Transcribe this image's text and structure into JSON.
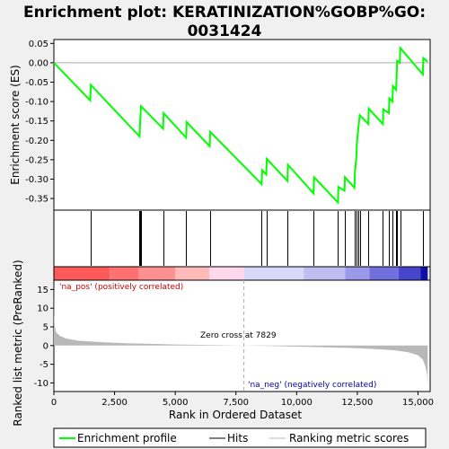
{
  "title_line1": "Enrichment plot: KERATINIZATION%GOBP%GO:",
  "title_line2": "0031424",
  "colors": {
    "background": "#f0f0f0",
    "plot_bg": "#ffffff",
    "es_line": "#00ff00",
    "hit_line": "#000000",
    "metric_fill": "#b8b8b8",
    "zero_line": "#aaaaaa",
    "pos_label": "#cc0000",
    "neg_label": "#0000aa"
  },
  "chart_data": [
    {
      "type": "line",
      "name": "enrichment-profile",
      "ylabel": "Enrichment score (ES)",
      "xlim": [
        0,
        15500
      ],
      "ylim": [
        -0.38,
        0.06
      ],
      "y_ticks": [
        0.05,
        0.0,
        -0.05,
        -0.1,
        -0.15,
        -0.2,
        -0.25,
        -0.3,
        -0.35
      ],
      "y_tick_labels": [
        "0.05",
        "0.00",
        "-0.05",
        "-0.10",
        "-0.15",
        "-0.20",
        "-0.25",
        "-0.30",
        "-0.35"
      ],
      "points": [
        [
          0,
          0.0
        ],
        [
          1500,
          -0.097
        ],
        [
          1520,
          -0.057
        ],
        [
          3530,
          -0.19
        ],
        [
          3550,
          -0.155
        ],
        [
          3590,
          -0.112
        ],
        [
          4500,
          -0.17
        ],
        [
          4520,
          -0.13
        ],
        [
          5450,
          -0.193
        ],
        [
          5470,
          -0.153
        ],
        [
          6420,
          -0.215
        ],
        [
          6440,
          -0.178
        ],
        [
          8560,
          -0.313
        ],
        [
          8580,
          -0.277
        ],
        [
          8750,
          -0.288
        ],
        [
          8770,
          -0.248
        ],
        [
          9620,
          -0.305
        ],
        [
          9640,
          -0.263
        ],
        [
          10700,
          -0.337
        ],
        [
          10720,
          -0.295
        ],
        [
          11700,
          -0.36
        ],
        [
          11720,
          -0.32
        ],
        [
          11970,
          -0.33
        ],
        [
          11990,
          -0.295
        ],
        [
          12380,
          -0.322
        ],
        [
          12400,
          -0.283
        ],
        [
          12460,
          -0.245
        ],
        [
          12480,
          -0.208
        ],
        [
          12540,
          -0.17
        ],
        [
          12600,
          -0.135
        ],
        [
          12950,
          -0.158
        ],
        [
          12970,
          -0.118
        ],
        [
          13550,
          -0.158
        ],
        [
          13570,
          -0.12
        ],
        [
          13800,
          -0.13
        ],
        [
          13820,
          -0.092
        ],
        [
          13950,
          -0.1
        ],
        [
          13970,
          -0.06
        ],
        [
          14100,
          -0.07
        ],
        [
          14120,
          -0.032
        ],
        [
          14140,
          0.005
        ],
        [
          14250,
          0.0
        ],
        [
          14270,
          0.038
        ],
        [
          15200,
          -0.03
        ],
        [
          15220,
          0.012
        ],
        [
          15400,
          0.003
        ]
      ]
    },
    {
      "type": "hits",
      "name": "hits",
      "positions": [
        1500,
        3530,
        3550,
        3590,
        4500,
        5450,
        6420,
        8560,
        8750,
        9620,
        10700,
        11700,
        11970,
        12380,
        12460,
        12540,
        12600,
        12950,
        13550,
        13800,
        13950,
        14100,
        14140,
        14270,
        15200
      ]
    },
    {
      "type": "area",
      "name": "ranked-list-metric",
      "ylabel": "Ranked list metric (PreRanked)",
      "xlabel": "Rank in Ordered Dataset",
      "xlim": [
        0,
        15500
      ],
      "ylim": [
        -12.3,
        17.5
      ],
      "x_ticks": [
        0,
        2500,
        5000,
        7500,
        10000,
        12500,
        15000
      ],
      "x_tick_labels": [
        "0",
        "2,500",
        "5,000",
        "7,500",
        "10,000",
        "12,500",
        "15,000"
      ],
      "y_ticks": [
        15,
        10,
        5,
        0,
        -5,
        -10
      ],
      "y_tick_labels": [
        "15",
        "10",
        "5",
        "0",
        "-5",
        "-10"
      ],
      "points": [
        [
          0,
          17.0
        ],
        [
          10,
          8.0
        ],
        [
          40,
          5.0
        ],
        [
          100,
          3.5
        ],
        [
          250,
          2.6
        ],
        [
          500,
          1.9
        ],
        [
          1000,
          1.3
        ],
        [
          2000,
          0.9
        ],
        [
          3000,
          0.6
        ],
        [
          4000,
          0.45
        ],
        [
          5000,
          0.3
        ],
        [
          6000,
          0.2
        ],
        [
          7000,
          0.1
        ],
        [
          7829,
          0.0
        ],
        [
          9000,
          -0.15
        ],
        [
          10000,
          -0.28
        ],
        [
          11000,
          -0.42
        ],
        [
          12000,
          -0.6
        ],
        [
          13000,
          -0.85
        ],
        [
          14000,
          -1.25
        ],
        [
          14600,
          -1.8
        ],
        [
          15000,
          -2.6
        ],
        [
          15200,
          -3.8
        ],
        [
          15300,
          -5.5
        ],
        [
          15380,
          -8.0
        ],
        [
          15400,
          -11.0
        ]
      ],
      "zero_cross_rank": 7829,
      "zero_cross_label": "Zero cross at 7829",
      "pos_label": "'na_pos' (positively correlated)",
      "neg_label": "'na_neg' (negatively correlated)"
    }
  ],
  "legend": {
    "items": [
      {
        "label": "Enrichment profile"
      },
      {
        "label": "Hits"
      },
      {
        "label": "Ranking metric scores"
      }
    ]
  }
}
